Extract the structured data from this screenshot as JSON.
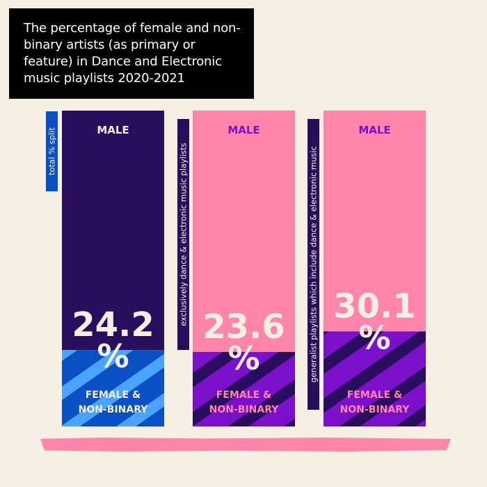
{
  "title": "The percentage of female and non-binary artists (as primary or feature) in Dance and Electronic music playlists 2020-2021",
  "colors": {
    "background": "#f6efe4",
    "dark_purple": "#2a0e5e",
    "pink": "#ff85aa",
    "blue": "#0b4fc4",
    "light_blue": "#4aa3ff",
    "purple": "#7a10c9",
    "cream": "#f6efe4"
  },
  "chart_data": {
    "type": "bar",
    "stacked": true,
    "unit": "%",
    "categories": [
      "total % split",
      "exclusively dance & electronic music playlists",
      "generalist playlists which include dance & electronic music"
    ],
    "series": [
      {
        "name": "FEMALE & NON-BINARY",
        "values": [
          24.2,
          23.6,
          30.1
        ]
      },
      {
        "name": "MALE",
        "values": [
          75.8,
          76.4,
          69.9
        ]
      }
    ],
    "value_labels": [
      "24.2",
      "23.6",
      "30.1"
    ],
    "percent_symbol": "%",
    "top_label": "MALE",
    "bottom_label_line1": "FEMALE &",
    "bottom_label_line2": "NON-BINARY",
    "ylim": [
      0,
      100
    ]
  }
}
